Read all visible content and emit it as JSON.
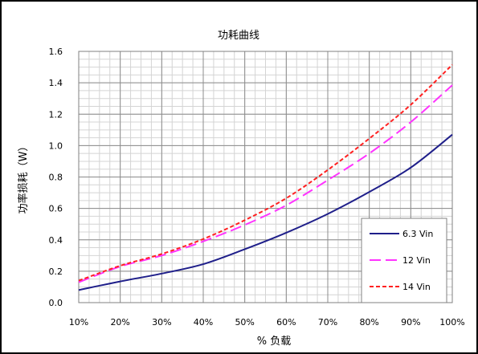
{
  "chart_data": {
    "type": "line",
    "title": "功耗曲线",
    "xlabel": "% 负载",
    "ylabel": "功率损耗（W）",
    "x": [
      10,
      20,
      30,
      40,
      50,
      60,
      70,
      80,
      90,
      100
    ],
    "x_tick_labels": [
      "10%",
      "20%",
      "30%",
      "40%",
      "50%",
      "60%",
      "70%",
      "80%",
      "90%",
      "100%"
    ],
    "xlim": [
      10,
      100
    ],
    "ylim": [
      0,
      1.6
    ],
    "y_ticks": [
      0.0,
      0.2,
      0.4,
      0.6,
      0.8,
      1.0,
      1.2,
      1.4,
      1.6
    ],
    "y_tick_labels": [
      "0.0",
      "0.2",
      "0.4",
      "0.6",
      "0.8",
      "1.0",
      "1.2",
      "1.4",
      "1.6"
    ],
    "grid": true,
    "legend_position": "bottom-right",
    "series": [
      {
        "name": "6.3 Vin",
        "color": "#1f1f8a",
        "style": "solid",
        "values": [
          0.08,
          0.135,
          0.185,
          0.245,
          0.34,
          0.445,
          0.565,
          0.705,
          0.86,
          1.07
        ]
      },
      {
        "name": "12 Vin",
        "color": "#ff33ff",
        "style": "long-dash",
        "values": [
          0.13,
          0.23,
          0.3,
          0.39,
          0.495,
          0.62,
          0.78,
          0.95,
          1.15,
          1.385
        ]
      },
      {
        "name": "14 Vin",
        "color": "#ff2020",
        "style": "short-dash",
        "values": [
          0.14,
          0.235,
          0.31,
          0.405,
          0.525,
          0.665,
          0.845,
          1.045,
          1.26,
          1.515
        ]
      }
    ]
  }
}
